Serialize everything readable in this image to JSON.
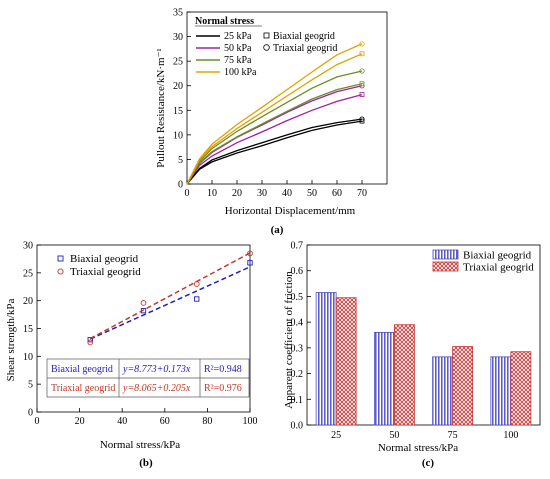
{
  "chart_data": [
    {
      "panel_label": "(a)",
      "type": "line",
      "xlabel": "Horizontal Displacement/mm",
      "ylabel": "Pullout Resistance/kN·m⁻¹",
      "xlim": [
        0,
        80
      ],
      "ylim": [
        0,
        35
      ],
      "xticks": [
        0,
        10,
        20,
        30,
        40,
        50,
        60,
        70
      ],
      "yticks": [
        0,
        5,
        10,
        15,
        20,
        25,
        30,
        35
      ],
      "legend_title": "Normal stress",
      "legend_placement": "top-left",
      "stress_entries": [
        "25 kPa",
        "50 kPa",
        "75 kPa",
        "100 kPa"
      ],
      "marker_entries": [
        "Biaxial geogrid",
        "Triaxial geogrid"
      ],
      "colors": {
        "25 kPa": "#000000",
        "50 kPa": "#a020a0",
        "75 kPa": "#6b8e23",
        "100 kPa": "#e0a000"
      },
      "x": [
        0,
        5,
        10,
        20,
        30,
        40,
        50,
        60,
        70
      ],
      "series": [
        {
          "stress": "25 kPa",
          "geogrid": "Biaxial",
          "values": [
            0,
            3.0,
            4.5,
            6.3,
            7.8,
            9.4,
            10.9,
            12.0,
            12.8
          ]
        },
        {
          "stress": "25 kPa",
          "geogrid": "Triaxial",
          "values": [
            0,
            3.2,
            4.9,
            6.8,
            8.4,
            10.0,
            11.5,
            12.5,
            13.2
          ]
        },
        {
          "stress": "50 kPa",
          "geogrid": "Biaxial",
          "values": [
            0,
            3.8,
            5.7,
            8.4,
            10.6,
            12.9,
            15.0,
            16.8,
            18.2
          ]
        },
        {
          "stress": "50 kPa",
          "geogrid": "Triaxial",
          "values": [
            0,
            4.2,
            6.4,
            9.5,
            12.0,
            14.6,
            16.9,
            18.8,
            20.0
          ]
        },
        {
          "stress": "75 kPa",
          "geogrid": "Biaxial",
          "values": [
            0,
            4.3,
            6.6,
            9.6,
            12.2,
            14.8,
            17.3,
            19.2,
            20.4
          ]
        },
        {
          "stress": "75 kPa",
          "geogrid": "Triaxial",
          "values": [
            0,
            4.6,
            7.2,
            10.7,
            13.7,
            16.6,
            19.5,
            21.8,
            23.0
          ]
        },
        {
          "stress": "100 kPa",
          "geogrid": "Biaxial",
          "values": [
            0,
            4.9,
            7.6,
            11.3,
            14.6,
            17.9,
            21.2,
            24.3,
            26.5
          ]
        },
        {
          "stress": "100 kPa",
          "geogrid": "Triaxial",
          "values": [
            0,
            5.1,
            8.1,
            12.1,
            15.6,
            19.2,
            22.8,
            26.3,
            28.5
          ]
        }
      ]
    },
    {
      "panel_label": "(b)",
      "type": "scatter",
      "xlabel": "Normal stress/kPa",
      "ylabel": "Shear strength/kPa",
      "xlim": [
        0,
        100
      ],
      "ylim": [
        0,
        30
      ],
      "xticks": [
        0,
        20,
        40,
        60,
        80,
        100
      ],
      "yticks": [
        0,
        5,
        10,
        15,
        20,
        25,
        30
      ],
      "legend_placement": "top-left",
      "series": [
        {
          "name": "Biaxial geogrid",
          "color": "#1f1fbf",
          "marker": "square",
          "x": [
            25,
            50,
            75,
            100
          ],
          "values": [
            13.0,
            18.2,
            20.3,
            26.8
          ],
          "fit": {
            "equation": "y=8.773+0.173x",
            "r2": "R²=0.948",
            "intercept": 8.773,
            "slope": 0.173
          }
        },
        {
          "name": "Triaxial geogrid",
          "color": "#c0392b",
          "marker": "circle",
          "x": [
            25,
            50,
            75,
            100
          ],
          "values": [
            12.5,
            19.6,
            23.0,
            28.5
          ],
          "fit": {
            "equation": "y=8.065+0.205x",
            "r2": "R²=0.976",
            "intercept": 8.065,
            "slope": 0.205
          }
        }
      ]
    },
    {
      "panel_label": "(c)",
      "type": "bar",
      "xlabel": "Normal stress/kPa",
      "ylabel": "Apparent coefficient of friction",
      "ylim": [
        0,
        0.7
      ],
      "yticks": [
        0.0,
        0.1,
        0.2,
        0.3,
        0.4,
        0.5,
        0.6,
        0.7
      ],
      "categories": [
        "25",
        "50",
        "75",
        "100"
      ],
      "legend_placement": "top-right",
      "series": [
        {
          "name": "Biaxial geogrid",
          "color": "#4a4ac8",
          "pattern": "vertical-lines",
          "values": [
            0.515,
            0.36,
            0.265,
            0.265
          ]
        },
        {
          "name": "Triaxial geogrid",
          "color": "#d03030",
          "pattern": "crosshatch",
          "values": [
            0.495,
            0.39,
            0.305,
            0.285
          ]
        }
      ]
    }
  ]
}
